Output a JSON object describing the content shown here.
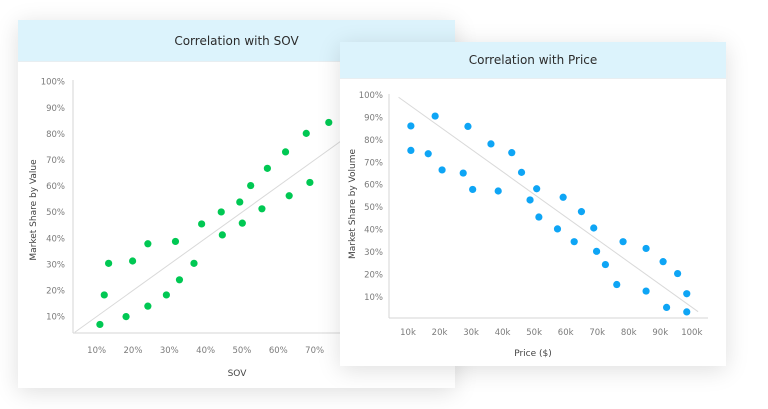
{
  "chart_data": [
    {
      "type": "scatter",
      "title": "Correlation with SOV",
      "xlabel": "SOV",
      "ylabel": "Market Share by Value",
      "x_ticks": [
        "10%",
        "20%",
        "30%",
        "40%",
        "50%",
        "60%",
        "70%"
      ],
      "y_ticks": [
        "10%",
        "20%",
        "30%",
        "40%",
        "50%",
        "60%",
        "70%",
        "80%",
        "90%",
        "100%"
      ],
      "x_tick_values": [
        10,
        20,
        30,
        40,
        50,
        60,
        70
      ],
      "y_tick_values": [
        10,
        20,
        30,
        40,
        50,
        60,
        70,
        80,
        90,
        100
      ],
      "xlim": [
        4,
        80
      ],
      "ylim": [
        4,
        100
      ],
      "grid": false,
      "color": "#00c853",
      "trendline": {
        "from": [
          4,
          4
        ],
        "to": [
          80,
          80
        ],
        "color": "#d9d9d9"
      },
      "points": [
        [
          10.9,
          7.0
        ],
        [
          12.1,
          18.3
        ],
        [
          13.3,
          30.4
        ],
        [
          18.1,
          10.0
        ],
        [
          19.9,
          31.3
        ],
        [
          24.1,
          14.0
        ],
        [
          24.1,
          37.9
        ],
        [
          29.2,
          18.3
        ],
        [
          31.7,
          38.8
        ],
        [
          32.8,
          24.1
        ],
        [
          36.8,
          30.4
        ],
        [
          38.9,
          45.5
        ],
        [
          44.3,
          50.1
        ],
        [
          44.6,
          41.3
        ],
        [
          49.4,
          53.9
        ],
        [
          50.1,
          45.8
        ],
        [
          52.4,
          60.2
        ],
        [
          55.5,
          51.3
        ],
        [
          57.0,
          66.8
        ],
        [
          62.0,
          73.1
        ],
        [
          63.0,
          56.3
        ],
        [
          67.7,
          80.2
        ],
        [
          68.7,
          61.4
        ],
        [
          73.9,
          84.4
        ]
      ]
    },
    {
      "type": "scatter",
      "title": "Correlation with Price",
      "xlabel": "Price ($)",
      "ylabel": "Market Share by Volume",
      "x_ticks": [
        "10k",
        "20k",
        "30k",
        "40k",
        "50k",
        "60k",
        "70k",
        "80k",
        "90k",
        "100k"
      ],
      "y_ticks": [
        "10%",
        "20%",
        "30%",
        "40%",
        "50%",
        "60%",
        "70%",
        "80%",
        "90%",
        "100%"
      ],
      "x_tick_values": [
        10,
        20,
        30,
        40,
        50,
        60,
        70,
        80,
        90,
        100
      ],
      "y_tick_values": [
        10,
        20,
        30,
        40,
        50,
        60,
        70,
        80,
        90,
        100
      ],
      "xlim": [
        4,
        105
      ],
      "ylim": [
        0,
        100
      ],
      "grid": false,
      "color": "#0ea5f5",
      "trendline": {
        "from": [
          7,
          99
        ],
        "to": [
          102,
          3.4
        ],
        "color": "#d9d9d9"
      },
      "points": [
        [
          10.9,
          86.2
        ],
        [
          10.9,
          75.3
        ],
        [
          16.4,
          73.8
        ],
        [
          18.6,
          90.6
        ],
        [
          20.8,
          66.6
        ],
        [
          27.5,
          65.2
        ],
        [
          29.0,
          86.0
        ],
        [
          30.5,
          57.9
        ],
        [
          36.3,
          78.2
        ],
        [
          38.6,
          57.2
        ],
        [
          42.9,
          74.3
        ],
        [
          46.0,
          65.5
        ],
        [
          48.7,
          53.2
        ],
        [
          50.8,
          58.2
        ],
        [
          51.5,
          45.6
        ],
        [
          57.4,
          40.3
        ],
        [
          59.2,
          54.4
        ],
        [
          62.7,
          34.6
        ],
        [
          65.0,
          48.0
        ],
        [
          68.9,
          40.7
        ],
        [
          69.8,
          30.3
        ],
        [
          72.6,
          24.4
        ],
        [
          76.2,
          15.5
        ],
        [
          78.2,
          34.6
        ],
        [
          85.5,
          31.6
        ],
        [
          85.5,
          12.6
        ],
        [
          90.9,
          25.7
        ],
        [
          92.0,
          5.3
        ],
        [
          95.5,
          20.4
        ],
        [
          98.4,
          11.4
        ],
        [
          98.4,
          3.3
        ]
      ]
    }
  ]
}
